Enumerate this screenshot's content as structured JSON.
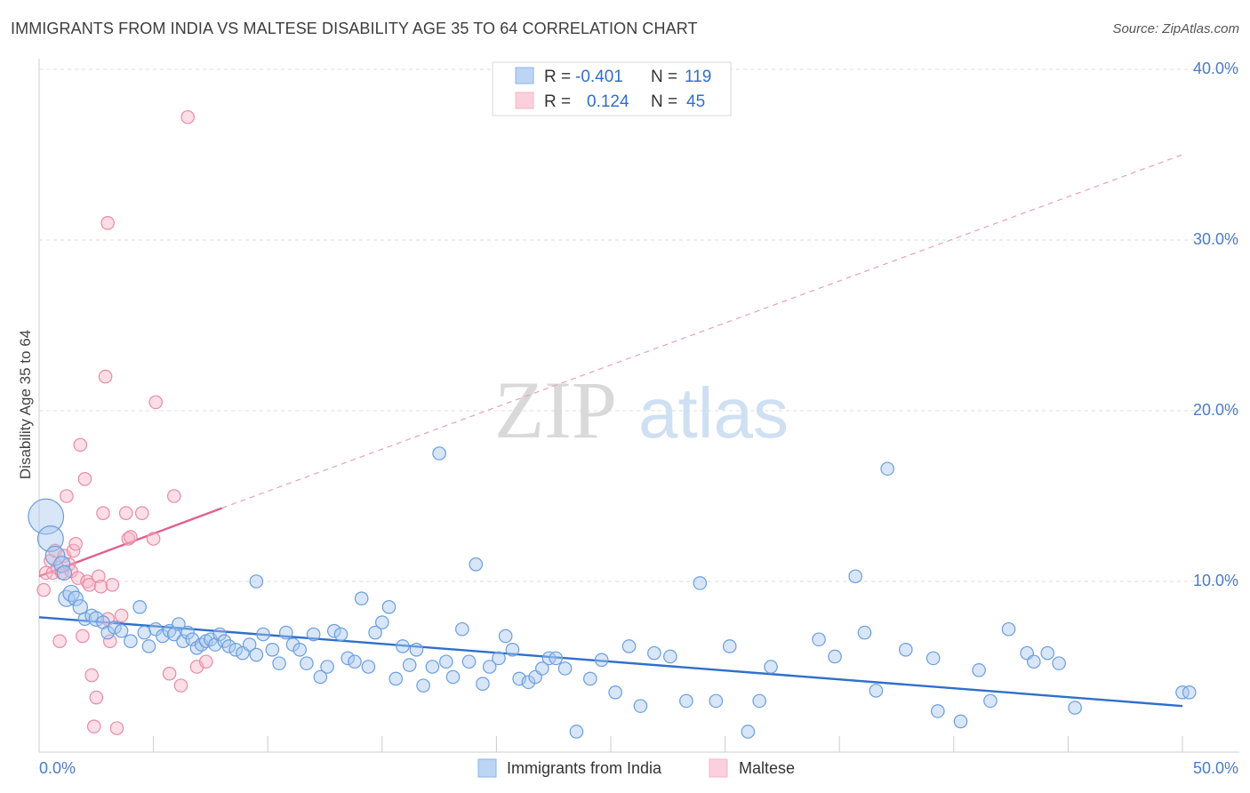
{
  "title": "IMMIGRANTS FROM INDIA VS MALTESE DISABILITY AGE 35 TO 64 CORRELATION CHART",
  "source": "Source: ZipAtlas.com",
  "watermark": {
    "zip": "ZIP",
    "atlas": "atlas"
  },
  "legend": {
    "rows": [
      {
        "r_label": "R =",
        "r_value": "-0.401",
        "n_label": "N =",
        "n_value": "119",
        "color": "#a8c8f0"
      },
      {
        "r_label": "R =",
        "r_value": "0.124",
        "n_label": "N =",
        "n_value": "45",
        "color": "#f6b6c8"
      }
    ]
  },
  "chart_data": {
    "type": "scatter",
    "title": "IMMIGRANTS FROM INDIA VS MALTESE DISABILITY AGE 35 TO 64 CORRELATION CHART",
    "xlabel": "",
    "ylabel": "Disability Age 35 to 64",
    "xlim": [
      0,
      50
    ],
    "ylim": [
      0,
      40
    ],
    "x_tick_labels": [
      "0.0%",
      "50.0%"
    ],
    "y_ticks": [
      10,
      20,
      30,
      40
    ],
    "y_tick_labels": [
      "10.0%",
      "20.0%",
      "30.0%",
      "40.0%"
    ],
    "grid": true,
    "legend_position": "bottom",
    "series": [
      {
        "name": "Immigrants from India",
        "color": "#8ab4ea",
        "line_color": "#2f6fcc",
        "trend": {
          "x": [
            0,
            50
          ],
          "y": [
            7.9,
            2.7
          ],
          "dashed_to": null
        },
        "points": [
          [
            0.3,
            13.8,
            2.2
          ],
          [
            0.5,
            12.5,
            1.6
          ],
          [
            0.7,
            11.5,
            1.2
          ],
          [
            1.0,
            11.0,
            1.0
          ],
          [
            1.1,
            10.5,
            0.9
          ],
          [
            1.2,
            9.0,
            1.0
          ],
          [
            1.4,
            9.3,
            1.0
          ],
          [
            1.6,
            9.0,
            0.9
          ],
          [
            1.8,
            8.5,
            0.9
          ],
          [
            2.0,
            7.8,
            0.8
          ],
          [
            2.3,
            8.0,
            0.8
          ],
          [
            2.5,
            7.8,
            0.9
          ],
          [
            2.8,
            7.6,
            0.8
          ],
          [
            3.0,
            7.0,
            0.8
          ],
          [
            3.3,
            7.3,
            0.8
          ],
          [
            3.6,
            7.1,
            0.8
          ],
          [
            4.0,
            6.5,
            0.8
          ],
          [
            4.4,
            8.5,
            0.8
          ],
          [
            4.6,
            7.0,
            0.8
          ],
          [
            4.8,
            6.2,
            0.8
          ],
          [
            5.1,
            7.2,
            0.8
          ],
          [
            5.4,
            6.8,
            0.8
          ],
          [
            5.7,
            7.1,
            0.8
          ],
          [
            5.9,
            6.9,
            0.8
          ],
          [
            6.1,
            7.5,
            0.8
          ],
          [
            6.3,
            6.5,
            0.8
          ],
          [
            6.5,
            7.0,
            0.8
          ],
          [
            6.7,
            6.6,
            0.8
          ],
          [
            6.9,
            6.1,
            0.8
          ],
          [
            7.1,
            6.3,
            0.8
          ],
          [
            7.3,
            6.5,
            0.8
          ],
          [
            7.5,
            6.6,
            0.8
          ],
          [
            7.7,
            6.3,
            0.8
          ],
          [
            7.9,
            6.9,
            0.8
          ],
          [
            8.1,
            6.5,
            0.8
          ],
          [
            8.3,
            6.2,
            0.8
          ],
          [
            8.6,
            6.0,
            0.8
          ],
          [
            8.9,
            5.8,
            0.8
          ],
          [
            9.2,
            6.3,
            0.8
          ],
          [
            9.5,
            5.7,
            0.8
          ],
          [
            9.5,
            10.0,
            0.8
          ],
          [
            9.8,
            6.9,
            0.8
          ],
          [
            10.2,
            6.0,
            0.8
          ],
          [
            10.5,
            5.2,
            0.8
          ],
          [
            10.8,
            7.0,
            0.8
          ],
          [
            11.1,
            6.3,
            0.8
          ],
          [
            11.4,
            6.0,
            0.8
          ],
          [
            11.7,
            5.2,
            0.8
          ],
          [
            12.0,
            6.9,
            0.8
          ],
          [
            12.3,
            4.4,
            0.8
          ],
          [
            12.6,
            5.0,
            0.8
          ],
          [
            12.9,
            7.1,
            0.8
          ],
          [
            13.2,
            6.9,
            0.8
          ],
          [
            13.5,
            5.5,
            0.8
          ],
          [
            13.8,
            5.3,
            0.8
          ],
          [
            14.1,
            9.0,
            0.8
          ],
          [
            14.4,
            5.0,
            0.8
          ],
          [
            14.7,
            7.0,
            0.8
          ],
          [
            15.0,
            7.6,
            0.8
          ],
          [
            15.3,
            8.5,
            0.8
          ],
          [
            15.6,
            4.3,
            0.8
          ],
          [
            15.9,
            6.2,
            0.8
          ],
          [
            16.2,
            5.1,
            0.8
          ],
          [
            16.5,
            6.0,
            0.8
          ],
          [
            16.8,
            3.9,
            0.8
          ],
          [
            17.2,
            5.0,
            0.8
          ],
          [
            17.5,
            17.5,
            0.8
          ],
          [
            17.8,
            5.3,
            0.8
          ],
          [
            18.1,
            4.4,
            0.8
          ],
          [
            18.5,
            7.2,
            0.8
          ],
          [
            18.8,
            5.3,
            0.8
          ],
          [
            19.1,
            11.0,
            0.8
          ],
          [
            19.4,
            4.0,
            0.8
          ],
          [
            19.7,
            5.0,
            0.8
          ],
          [
            20.1,
            5.5,
            0.8
          ],
          [
            20.4,
            6.8,
            0.8
          ],
          [
            20.7,
            6.0,
            0.8
          ],
          [
            21.0,
            4.3,
            0.8
          ],
          [
            21.4,
            4.1,
            0.8
          ],
          [
            21.7,
            4.4,
            0.8
          ],
          [
            22.0,
            4.9,
            0.8
          ],
          [
            22.3,
            5.5,
            0.8
          ],
          [
            22.6,
            5.5,
            0.8
          ],
          [
            23.0,
            4.9,
            0.8
          ],
          [
            23.5,
            1.2,
            0.8
          ],
          [
            24.1,
            4.3,
            0.8
          ],
          [
            24.6,
            5.4,
            0.8
          ],
          [
            25.2,
            3.5,
            0.8
          ],
          [
            25.8,
            6.2,
            0.8
          ],
          [
            26.3,
            2.7,
            0.8
          ],
          [
            26.9,
            5.8,
            0.8
          ],
          [
            27.6,
            5.6,
            0.8
          ],
          [
            28.3,
            3.0,
            0.8
          ],
          [
            28.9,
            9.9,
            0.8
          ],
          [
            29.6,
            3.0,
            0.8
          ],
          [
            30.2,
            6.2,
            0.8
          ],
          [
            31.0,
            1.2,
            0.8
          ],
          [
            31.5,
            3.0,
            0.8
          ],
          [
            32.0,
            5.0,
            0.8
          ],
          [
            34.1,
            6.6,
            0.8
          ],
          [
            34.8,
            5.6,
            0.8
          ],
          [
            35.7,
            10.3,
            0.8
          ],
          [
            36.1,
            7.0,
            0.8
          ],
          [
            36.6,
            3.6,
            0.8
          ],
          [
            37.1,
            16.6,
            0.8
          ],
          [
            37.9,
            6.0,
            0.8
          ],
          [
            39.1,
            5.5,
            0.8
          ],
          [
            39.3,
            2.4,
            0.8
          ],
          [
            40.3,
            1.8,
            0.8
          ],
          [
            41.1,
            4.8,
            0.8
          ],
          [
            41.6,
            3.0,
            0.8
          ],
          [
            42.4,
            7.2,
            0.8
          ],
          [
            43.2,
            5.8,
            0.8
          ],
          [
            43.5,
            5.3,
            0.8
          ],
          [
            44.1,
            5.8,
            0.8
          ],
          [
            44.6,
            5.2,
            0.8
          ],
          [
            45.3,
            2.6,
            0.8
          ],
          [
            50.0,
            3.5,
            0.8
          ],
          [
            50.3,
            3.5,
            0.8
          ]
        ]
      },
      {
        "name": "Maltese",
        "color": "#f6b6c8",
        "line_color": "#e0608a",
        "trend": {
          "x": [
            0,
            8
          ],
          "y": [
            10.3,
            14.3
          ],
          "dashed_to": [
            50,
            35.0
          ]
        },
        "points": [
          [
            0.2,
            9.5,
            0.8
          ],
          [
            0.3,
            10.5,
            0.8
          ],
          [
            0.5,
            11.2,
            0.8
          ],
          [
            0.6,
            10.5,
            0.8
          ],
          [
            0.7,
            11.8,
            0.8
          ],
          [
            0.8,
            10.8,
            0.8
          ],
          [
            0.9,
            6.5,
            0.8
          ],
          [
            1.0,
            10.5,
            0.8
          ],
          [
            1.1,
            11.5,
            0.8
          ],
          [
            1.2,
            15.0,
            0.8
          ],
          [
            1.3,
            11.0,
            0.8
          ],
          [
            1.4,
            10.6,
            0.8
          ],
          [
            1.5,
            11.8,
            0.8
          ],
          [
            1.6,
            12.2,
            0.8
          ],
          [
            1.7,
            10.2,
            0.8
          ],
          [
            1.8,
            18.0,
            0.8
          ],
          [
            1.9,
            6.8,
            0.8
          ],
          [
            2.0,
            16.0,
            0.8
          ],
          [
            2.1,
            10.0,
            0.8
          ],
          [
            2.2,
            9.8,
            0.8
          ],
          [
            2.3,
            4.5,
            0.8
          ],
          [
            2.4,
            1.5,
            0.8
          ],
          [
            2.5,
            3.2,
            0.8
          ],
          [
            2.6,
            10.3,
            0.8
          ],
          [
            2.7,
            9.7,
            0.8
          ],
          [
            2.8,
            14.0,
            0.8
          ],
          [
            2.9,
            22.0,
            0.8
          ],
          [
            3.0,
            31.0,
            0.8
          ],
          [
            3.1,
            6.5,
            0.8
          ],
          [
            3.2,
            9.8,
            0.8
          ],
          [
            3.4,
            1.4,
            0.8
          ],
          [
            3.6,
            8.0,
            0.8
          ],
          [
            3.8,
            14.0,
            0.8
          ],
          [
            3.9,
            12.5,
            0.8
          ],
          [
            4.0,
            12.6,
            0.8
          ],
          [
            4.5,
            14.0,
            0.8
          ],
          [
            5.0,
            12.5,
            0.8
          ],
          [
            5.1,
            20.5,
            0.8
          ],
          [
            5.7,
            4.6,
            0.8
          ],
          [
            5.9,
            15.0,
            0.8
          ],
          [
            6.2,
            3.9,
            0.8
          ],
          [
            6.5,
            37.2,
            0.8
          ],
          [
            6.9,
            5.0,
            0.8
          ],
          [
            7.3,
            5.3,
            0.8
          ],
          [
            3.0,
            7.8,
            0.8
          ]
        ]
      }
    ]
  }
}
